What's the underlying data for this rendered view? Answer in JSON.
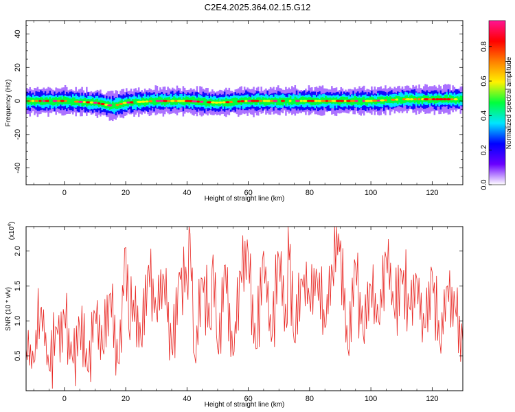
{
  "title": "C2E4.2025.364.02.15.G12",
  "colors": {
    "snr_line": "#e8231f",
    "axis": "#000000",
    "background": "#ffffff"
  },
  "chart_data": [
    {
      "type": "heatmap",
      "xlabel": "Height of straight line (km)",
      "ylabel": "Frequency (Hz)",
      "xlim": [
        -12.5,
        130
      ],
      "ylim": [
        -50,
        48
      ],
      "x_ticks": [
        0,
        20,
        40,
        60,
        80,
        100,
        120
      ],
      "x_tick_labels": [
        "0",
        "20",
        "40",
        "60",
        "80",
        "100",
        "120"
      ],
      "y_ticks": [
        -40,
        -20,
        0,
        20,
        40
      ],
      "y_tick_labels": [
        "-40",
        "-20",
        "0",
        "20",
        "40"
      ],
      "colorbar": {
        "label": "Normalized spectral amplitude",
        "range": [
          0,
          0.95
        ],
        "ticks": [
          0.0,
          0.2,
          0.4,
          0.6,
          0.8
        ],
        "tick_labels": [
          "0.0",
          "0.2",
          "0.4",
          "0.6",
          "0.8"
        ],
        "colormap": [
          "#ffffff",
          "#6a00ff",
          "#0000ff",
          "#00e5ff",
          "#00ff3c",
          "#fff200",
          "#ff8000",
          "#ff0000",
          "#ff1493"
        ]
      },
      "band": {
        "center_hz": [
          [
            -12.5,
            0
          ],
          [
            0,
            0
          ],
          [
            10,
            -1
          ],
          [
            16,
            -3
          ],
          [
            20,
            -1
          ],
          [
            30,
            0
          ],
          [
            40,
            0
          ],
          [
            50,
            -1
          ],
          [
            60,
            0
          ],
          [
            70,
            0
          ],
          [
            80,
            0
          ],
          [
            90,
            0
          ],
          [
            100,
            0
          ],
          [
            110,
            1
          ],
          [
            120,
            1
          ],
          [
            130,
            1
          ]
        ],
        "half_width_hz": 4,
        "peak_amplitude": 0.95
      }
    },
    {
      "type": "line",
      "xlabel": "Height of straight line (km)",
      "ylabel": "SNR (10 * v/v)",
      "multiplier_label": "(x10",
      "multiplier_exp": "4",
      "multiplier_close": ")",
      "xlim": [
        -12.5,
        130
      ],
      "ylim": [
        0,
        23500
      ],
      "x_ticks": [
        0,
        20,
        40,
        60,
        80,
        100,
        120
      ],
      "x_tick_labels": [
        "0",
        "20",
        "40",
        "60",
        "80",
        "100",
        "120"
      ],
      "y_ticks": [
        5000,
        10000,
        15000,
        20000
      ],
      "y_tick_labels": [
        "0.5",
        "1.0",
        "1.5",
        "2.0"
      ],
      "series": [
        {
          "x": [
            -12.5,
            -10,
            -7.5,
            -5,
            -2.5,
            0,
            2.5,
            5,
            7.5,
            10,
            12.5,
            15,
            17.5,
            20,
            21,
            22.5,
            25,
            27.5,
            30,
            32.5,
            35,
            37.5,
            40,
            41,
            42.5,
            45,
            47.5,
            48.5,
            50,
            52.5,
            55,
            57.5,
            60,
            62.5,
            65,
            67.5,
            70,
            72.5,
            73,
            75,
            77.5,
            80,
            82.5,
            85,
            87.5,
            89.5,
            92.5,
            95,
            97.5,
            100,
            102.5,
            105,
            107.5,
            110,
            112.5,
            115,
            117.5,
            120,
            122.5,
            125,
            127.5,
            130
          ],
          "y": [
            6000,
            4000,
            12000,
            3000,
            9000,
            10500,
            5000,
            9000,
            3000,
            11000,
            6000,
            14000,
            4000,
            20500,
            9000,
            13000,
            7000,
            18000,
            11000,
            16000,
            6000,
            17000,
            15000,
            22500,
            5000,
            16000,
            9000,
            19500,
            6000,
            18000,
            5000,
            17000,
            19500,
            6000,
            20000,
            7000,
            19000,
            9000,
            23500,
            7000,
            16000,
            13000,
            16000,
            9000,
            17000,
            22500,
            6000,
            18000,
            8000,
            15000,
            10000,
            19000,
            12000,
            17000,
            12000,
            16000,
            9000,
            17000,
            7000,
            15000,
            12000,
            7000
          ]
        }
      ]
    }
  ]
}
